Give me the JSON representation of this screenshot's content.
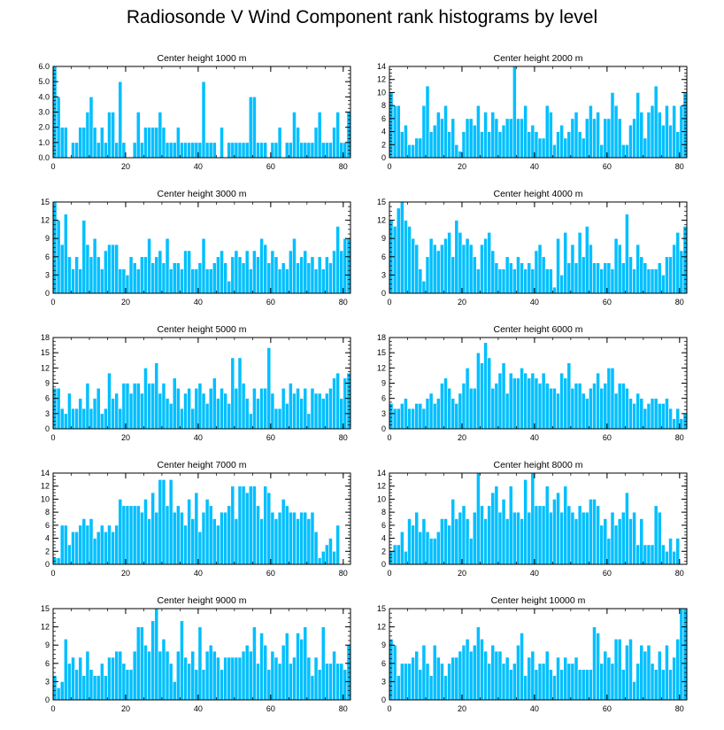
{
  "title": "Radiosonde V Wind Component rank histograms by level",
  "style": {
    "bar_color": "#00bfff",
    "bar_edge": "#ffffff",
    "frame_color": "#000000"
  },
  "chart_data": [
    {
      "type": "bar",
      "title": "Center height 1000 m",
      "xlim": [
        0,
        82
      ],
      "ylim": [
        0,
        6
      ],
      "xticks": [
        "0",
        "20",
        "40",
        "60",
        "80"
      ],
      "yticks": [
        "0.0",
        "1.0",
        "2.0",
        "3.0",
        "4.0",
        "5.0",
        "6.0"
      ],
      "values": [
        6,
        4,
        2,
        2,
        0,
        1,
        1,
        2,
        2,
        3,
        4,
        2,
        1,
        2,
        1,
        3,
        3,
        1,
        5,
        1,
        0,
        0,
        1,
        3,
        1,
        2,
        2,
        2,
        2,
        3,
        2,
        1,
        1,
        1,
        2,
        1,
        1,
        1,
        1,
        1,
        1,
        5,
        1,
        1,
        1,
        0,
        2,
        0,
        1,
        1,
        1,
        1,
        1,
        1,
        4,
        4,
        1,
        1,
        1,
        0,
        1,
        1,
        2,
        0,
        1,
        1,
        3,
        2,
        1,
        1,
        1,
        1,
        2,
        3,
        1,
        1,
        1,
        2,
        3,
        1,
        1,
        3
      ]
    },
    {
      "type": "bar",
      "title": "Center height 2000 m",
      "xlim": [
        0,
        82
      ],
      "ylim": [
        0,
        14
      ],
      "xticks": [
        "0",
        "20",
        "40",
        "60",
        "80"
      ],
      "yticks": [
        "0",
        "2",
        "4",
        "6",
        "8",
        "10",
        "12",
        "14"
      ],
      "values": [
        10,
        8,
        8,
        4,
        5,
        2,
        2,
        3,
        3,
        8,
        11,
        4,
        5,
        7,
        6,
        8,
        4,
        6,
        2,
        1,
        4,
        6,
        6,
        5,
        8,
        4,
        7,
        4,
        7,
        6,
        4,
        5,
        6,
        6,
        14,
        6,
        6,
        8,
        4,
        5,
        4,
        3,
        3,
        8,
        7,
        2,
        4,
        5,
        3,
        4,
        6,
        7,
        4,
        3,
        6,
        8,
        6,
        7,
        2,
        6,
        6,
        10,
        8,
        6,
        2,
        2,
        5,
        6,
        10,
        7,
        3,
        7,
        8,
        11,
        7,
        5,
        8,
        5,
        8,
        4,
        8,
        10
      ]
    },
    {
      "type": "bar",
      "title": "Center height 3000 m",
      "xlim": [
        0,
        82
      ],
      "ylim": [
        0,
        15
      ],
      "xticks": [
        "0",
        "20",
        "40",
        "60",
        "80"
      ],
      "yticks": [
        "0",
        "3",
        "6",
        "9",
        "12",
        "15"
      ],
      "values": [
        15,
        12,
        8,
        13,
        6,
        4,
        6,
        4,
        12,
        8,
        6,
        9,
        6,
        4,
        7,
        8,
        8,
        8,
        4,
        4,
        3,
        6,
        5,
        4,
        6,
        6,
        9,
        5,
        6,
        7,
        5,
        9,
        4,
        5,
        5,
        4,
        7,
        7,
        4,
        4,
        5,
        9,
        4,
        4,
        5,
        6,
        7,
        5,
        2,
        6,
        7,
        6,
        5,
        7,
        4,
        7,
        6,
        9,
        8,
        5,
        7,
        6,
        4,
        5,
        4,
        7,
        9,
        5,
        6,
        7,
        5,
        6,
        4,
        6,
        4,
        6,
        5,
        7,
        11,
        7,
        9,
        9
      ]
    },
    {
      "type": "bar",
      "title": "Center height 4000 m",
      "xlim": [
        0,
        82
      ],
      "ylim": [
        0,
        15
      ],
      "xticks": [
        "0",
        "20",
        "40",
        "60",
        "80"
      ],
      "yticks": [
        "0",
        "3",
        "6",
        "9",
        "12",
        "15"
      ],
      "values": [
        12,
        11,
        14,
        15,
        12,
        11,
        9,
        8,
        4,
        2,
        6,
        9,
        8,
        7,
        8,
        9,
        10,
        6,
        12,
        10,
        8,
        9,
        8,
        6,
        4,
        8,
        9,
        10,
        7,
        5,
        4,
        4,
        6,
        5,
        4,
        6,
        5,
        4,
        5,
        4,
        7,
        8,
        6,
        4,
        4,
        1,
        9,
        3,
        10,
        5,
        8,
        5,
        10,
        6,
        11,
        8,
        5,
        5,
        4,
        5,
        5,
        4,
        9,
        8,
        5,
        13,
        6,
        4,
        8,
        6,
        5,
        4,
        4,
        4,
        5,
        3,
        6,
        6,
        8,
        10,
        7,
        11
      ]
    },
    {
      "type": "bar",
      "title": "Center height 5000 m",
      "xlim": [
        0,
        82
      ],
      "ylim": [
        0,
        18
      ],
      "xticks": [
        "0",
        "20",
        "40",
        "60",
        "80"
      ],
      "yticks": [
        "0",
        "3",
        "6",
        "9",
        "12",
        "15",
        "18"
      ],
      "values": [
        8,
        8,
        4,
        3,
        7,
        4,
        4,
        6,
        4,
        9,
        4,
        6,
        8,
        3,
        4,
        11,
        6,
        7,
        4,
        9,
        9,
        7,
        9,
        9,
        7,
        12,
        9,
        9,
        13,
        7,
        9,
        6,
        5,
        10,
        8,
        4,
        7,
        8,
        4,
        8,
        9,
        7,
        5,
        8,
        10,
        6,
        8,
        7,
        5,
        14,
        8,
        14,
        9,
        6,
        3,
        8,
        6,
        8,
        8,
        16,
        7,
        4,
        4,
        8,
        5,
        9,
        7,
        8,
        6,
        8,
        3,
        8,
        7,
        7,
        6,
        7,
        8,
        10,
        11,
        6,
        10,
        11
      ]
    },
    {
      "type": "bar",
      "title": "Center height 6000 m",
      "xlim": [
        0,
        82
      ],
      "ylim": [
        0,
        18
      ],
      "xticks": [
        "0",
        "20",
        "40",
        "60",
        "80"
      ],
      "yticks": [
        "0",
        "3",
        "6",
        "9",
        "12",
        "15",
        "18"
      ],
      "values": [
        5,
        4,
        4,
        5,
        6,
        4,
        4,
        5,
        5,
        4,
        6,
        7,
        5,
        6,
        9,
        10,
        8,
        6,
        5,
        7,
        9,
        12,
        8,
        8,
        15,
        13,
        17,
        14,
        8,
        9,
        11,
        13,
        7,
        11,
        10,
        10,
        12,
        11,
        10,
        11,
        10,
        9,
        11,
        9,
        8,
        8,
        7,
        11,
        10,
        13,
        8,
        9,
        9,
        7,
        6,
        8,
        9,
        11,
        8,
        9,
        12,
        12,
        7,
        9,
        9,
        8,
        6,
        5,
        7,
        6,
        4,
        5,
        6,
        6,
        5,
        5,
        6,
        4,
        2,
        4,
        2,
        3
      ]
    },
    {
      "type": "bar",
      "title": "Center height 7000 m",
      "xlim": [
        0,
        82
      ],
      "ylim": [
        0,
        14
      ],
      "xticks": [
        "0",
        "20",
        "40",
        "60",
        "80"
      ],
      "yticks": [
        "0",
        "2",
        "4",
        "6",
        "8",
        "10",
        "12",
        "14"
      ],
      "values": [
        1,
        1,
        6,
        6,
        3,
        5,
        5,
        6,
        7,
        6,
        7,
        4,
        5,
        6,
        5,
        6,
        5,
        6,
        10,
        9,
        9,
        9,
        9,
        9,
        8,
        10,
        7,
        11,
        8,
        13,
        13,
        9,
        13,
        8,
        9,
        8,
        6,
        10,
        7,
        11,
        5,
        8,
        10,
        9,
        7,
        6,
        8,
        8,
        9,
        12,
        7,
        12,
        12,
        11,
        12,
        12,
        9,
        7,
        12,
        11,
        8,
        7,
        8,
        10,
        9,
        8,
        8,
        7,
        8,
        8,
        7,
        8,
        5,
        1,
        2,
        3,
        4,
        2,
        6
      ]
    },
    {
      "type": "bar",
      "title": "Center height 8000 m",
      "xlim": [
        0,
        82
      ],
      "ylim": [
        0,
        14
      ],
      "xticks": [
        "0",
        "20",
        "40",
        "60",
        "80"
      ],
      "yticks": [
        "0",
        "2",
        "4",
        "6",
        "8",
        "10",
        "12",
        "14"
      ],
      "values": [
        2,
        3,
        3,
        5,
        2,
        7,
        6,
        8,
        5,
        7,
        5,
        4,
        4,
        5,
        7,
        7,
        6,
        10,
        7,
        8,
        9,
        7,
        4,
        8,
        14,
        9,
        7,
        9,
        11,
        12,
        8,
        10,
        7,
        12,
        8,
        8,
        7,
        13,
        8,
        14,
        9,
        9,
        9,
        12,
        8,
        10,
        11,
        8,
        12,
        9,
        8,
        7,
        9,
        8,
        8,
        10,
        10,
        9,
        6,
        7,
        4,
        8,
        6,
        7,
        8,
        11,
        7,
        8,
        3,
        7,
        3,
        3,
        3,
        9,
        8,
        3,
        2,
        4,
        2,
        4
      ]
    },
    {
      "type": "bar",
      "title": "Center height 9000 m",
      "xlim": [
        0,
        82
      ],
      "ylim": [
        0,
        15
      ],
      "xticks": [
        "0",
        "20",
        "40",
        "60",
        "80"
      ],
      "yticks": [
        "0",
        "3",
        "6",
        "9",
        "12",
        "15"
      ],
      "values": [
        4,
        2,
        3,
        10,
        6,
        7,
        5,
        7,
        4,
        8,
        5,
        4,
        4,
        6,
        4,
        7,
        7,
        8,
        8,
        6,
        5,
        5,
        8,
        12,
        12,
        9,
        8,
        13,
        15,
        8,
        10,
        8,
        6,
        3,
        8,
        13,
        7,
        6,
        8,
        5,
        12,
        5,
        8,
        9,
        8,
        7,
        5,
        7,
        7,
        7,
        7,
        7,
        8,
        9,
        8,
        12,
        6,
        11,
        9,
        5,
        8,
        7,
        6,
        9,
        11,
        6,
        7,
        11,
        10,
        12,
        7,
        4,
        7,
        5,
        12,
        6,
        6,
        8,
        6,
        6,
        5,
        9
      ]
    },
    {
      "type": "bar",
      "title": "Center height 10000 m",
      "xlim": [
        0,
        82
      ],
      "ylim": [
        0,
        15
      ],
      "xticks": [
        "0",
        "20",
        "40",
        "60",
        "80"
      ],
      "yticks": [
        "0",
        "3",
        "6",
        "9",
        "12",
        "15"
      ],
      "values": [
        10,
        9,
        4,
        6,
        6,
        6,
        7,
        8,
        5,
        9,
        6,
        4,
        9,
        7,
        6,
        4,
        6,
        7,
        7,
        8,
        9,
        10,
        8,
        9,
        12,
        10,
        8,
        6,
        9,
        8,
        8,
        6,
        7,
        5,
        6,
        9,
        11,
        4,
        7,
        8,
        5,
        6,
        6,
        8,
        5,
        4,
        7,
        5,
        7,
        6,
        6,
        7,
        5,
        5,
        5,
        5,
        12,
        11,
        6,
        8,
        7,
        6,
        10,
        10,
        5,
        9,
        10,
        3,
        6,
        9,
        8,
        9,
        6,
        5,
        8,
        5,
        9,
        5,
        7,
        10,
        15,
        15
      ]
    }
  ]
}
